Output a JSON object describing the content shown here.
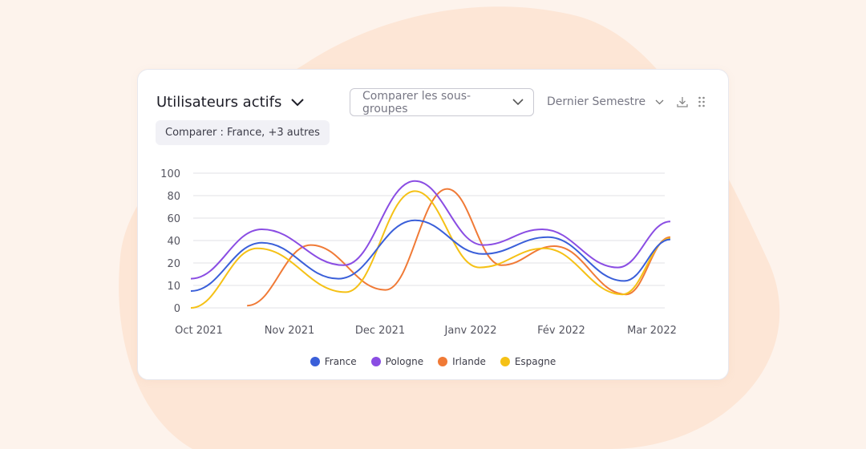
{
  "header": {
    "title": "Utilisateurs actifs",
    "compare_select": "Comparer les sous-groupes",
    "period_select": "Dernier Semestre",
    "compare_chip": "Comparer : France, +3 autres",
    "icons": [
      "chevron-down-icon",
      "download-icon",
      "drag-handle-icon"
    ]
  },
  "chart_data": {
    "type": "line",
    "x_ticks": [
      "Oct 2021",
      "Nov 2021",
      "Dec 2021",
      "Janv 2022",
      "Fév 2022",
      "Mar 2022"
    ],
    "y_ticks": [
      0,
      10,
      20,
      40,
      60,
      80,
      100
    ],
    "ylim": [
      0,
      100
    ],
    "grid": true,
    "smooth": true,
    "legend_position": "bottom",
    "series": [
      {
        "name": "France",
        "color": "#3a5fd9",
        "x": [
          0,
          0.77,
          1.6,
          2.43,
          3.17,
          3.87,
          4.7,
          5.2
        ],
        "y": [
          7.5,
          38,
          13,
          58,
          28,
          43,
          12,
          41
        ]
      },
      {
        "name": "Pologne",
        "color": "#8a4de3",
        "x": [
          0,
          0.77,
          1.66,
          2.43,
          3.17,
          3.81,
          4.63,
          5.2
        ],
        "y": [
          13,
          50,
          19,
          93,
          36,
          50,
          18,
          57
        ]
      },
      {
        "name": "Irlande",
        "color": "#f07a36",
        "x": [
          0.61,
          1.3,
          2.11,
          2.78,
          3.37,
          3.94,
          4.72,
          5.2
        ],
        "y": [
          1,
          36,
          8,
          86,
          19,
          35,
          6,
          43
        ]
      },
      {
        "name": "Espagne",
        "color": "#f5c116",
        "x": [
          0,
          0.72,
          1.68,
          2.43,
          3.13,
          3.83,
          4.68,
          5.2
        ],
        "y": [
          0,
          33,
          7,
          84,
          18,
          33,
          6,
          42
        ]
      }
    ]
  }
}
